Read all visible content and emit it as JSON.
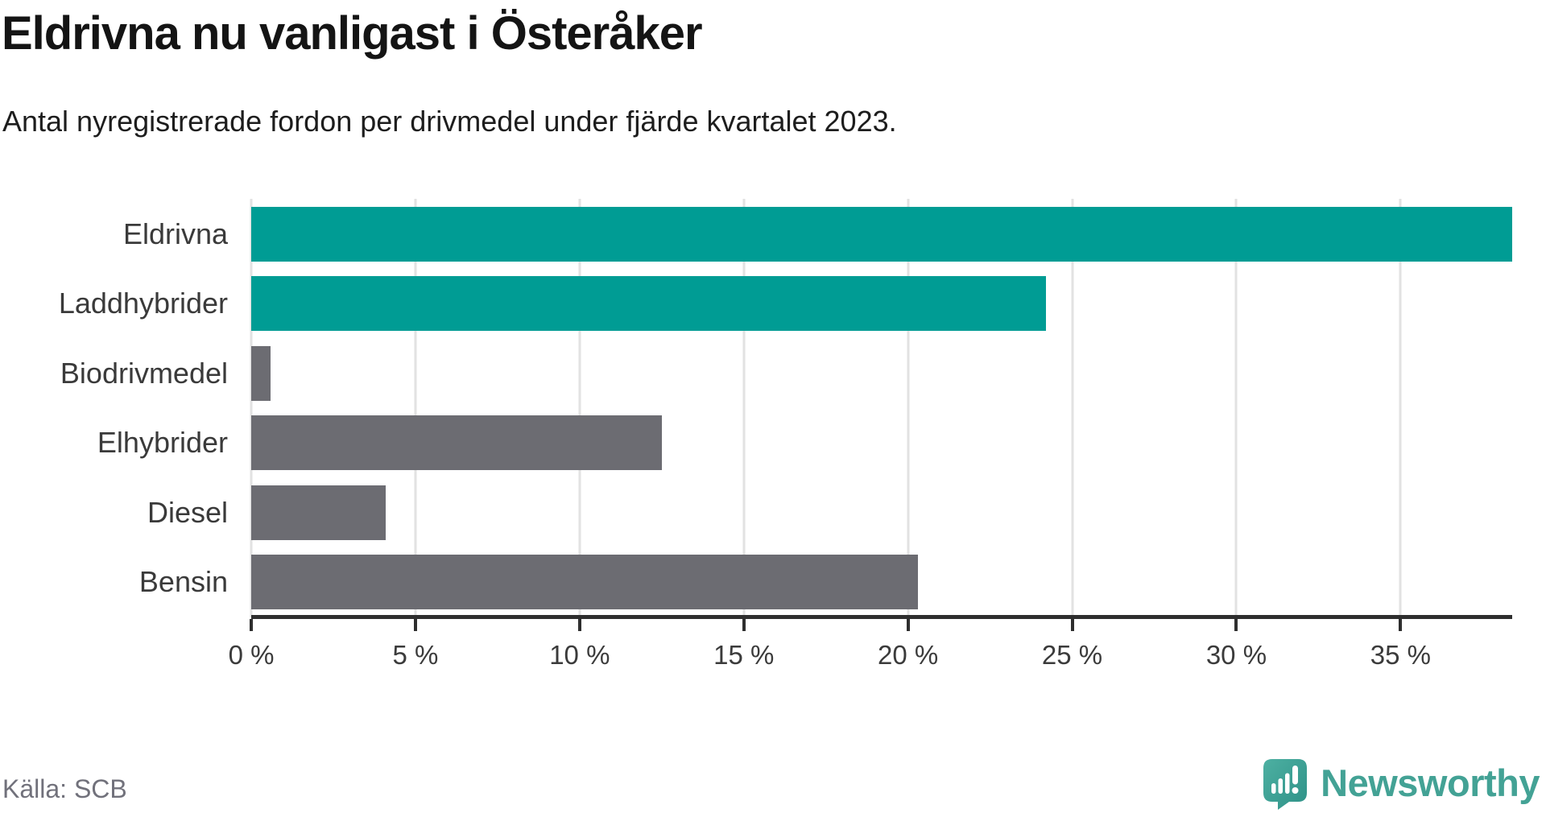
{
  "header": {
    "title": "Eldrivna nu vanligast i Österåker",
    "subtitle": "Antal nyregistrerade fordon per drivmedel under fjärde kvartalet 2023."
  },
  "chart_data": {
    "type": "bar",
    "orientation": "horizontal",
    "title": "Eldrivna nu vanligast i Österåker",
    "subtitle": "Antal nyregistrerade fordon per drivmedel under fjärde kvartalet 2023.",
    "categories": [
      "Eldrivna",
      "Laddhybrider",
      "Biodrivmedel",
      "Elhybrider",
      "Diesel",
      "Bensin"
    ],
    "values": [
      38.4,
      24.2,
      0.6,
      12.5,
      4.1,
      20.3
    ],
    "unit": "%",
    "xlabel": "",
    "ylabel": "",
    "xlim": [
      0,
      38.4
    ],
    "xticks": [
      0,
      5,
      10,
      15,
      20,
      25,
      30,
      35
    ],
    "xtick_labels": [
      "0 %",
      "5 %",
      "10 %",
      "15 %",
      "20 %",
      "25 %",
      "30 %",
      "35 %"
    ],
    "grid": true,
    "legend": false,
    "bar_colors": [
      "#009c94",
      "#009c94",
      "#6c6c72",
      "#6c6c72",
      "#6c6c72",
      "#6c6c72"
    ],
    "highlight_color": "#009c94",
    "default_color": "#6c6c72"
  },
  "footer": {
    "source": "Källa: SCB",
    "brand": "Newsworthy"
  },
  "icons": {
    "brand_logo": "newsworthy-pin-bar-chart-icon"
  },
  "colors": {
    "background": "#ffffff",
    "title": "#141414",
    "subtitle": "#1d1d1d",
    "gridline": "#e2e2e2",
    "axis": "#2e2e2e",
    "tick_label": "#3b3b3b",
    "category_label": "#3a3a3a",
    "source_text": "#71717b",
    "brand_teal": "#43a295"
  }
}
